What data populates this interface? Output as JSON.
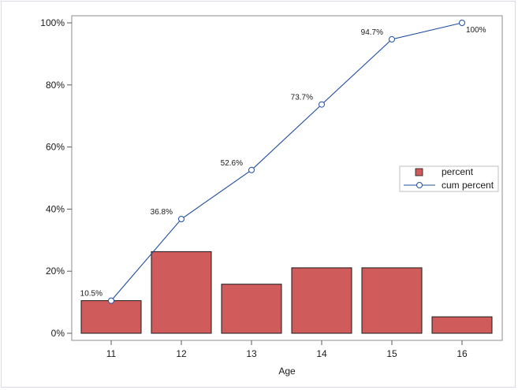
{
  "chart_data": {
    "type": "bar",
    "categories": [
      "11",
      "12",
      "13",
      "14",
      "15",
      "16"
    ],
    "series": [
      {
        "name": "percent",
        "kind": "bar",
        "color": "#d05b5b",
        "values": [
          10.5,
          26.3,
          15.8,
          21.1,
          21.1,
          5.3
        ]
      },
      {
        "name": "cum percent",
        "kind": "line",
        "color": "#1f4e9c",
        "values": [
          10.5,
          36.8,
          52.6,
          73.7,
          94.7,
          100
        ]
      }
    ],
    "point_labels": [
      "10.5%",
      "36.8%",
      "52.6%",
      "73.7%",
      "94.7%",
      "100%"
    ],
    "xlabel": "Age",
    "ylabel": "",
    "ylim": [
      0,
      100
    ],
    "y_ticks": [
      {
        "value": 0,
        "label": "0%"
      },
      {
        "value": 20,
        "label": "20%"
      },
      {
        "value": 40,
        "label": "40%"
      },
      {
        "value": 60,
        "label": "60%"
      },
      {
        "value": 80,
        "label": "80%"
      },
      {
        "value": 100,
        "label": "100%"
      }
    ],
    "grid": false,
    "legend_position": "right-inside"
  }
}
